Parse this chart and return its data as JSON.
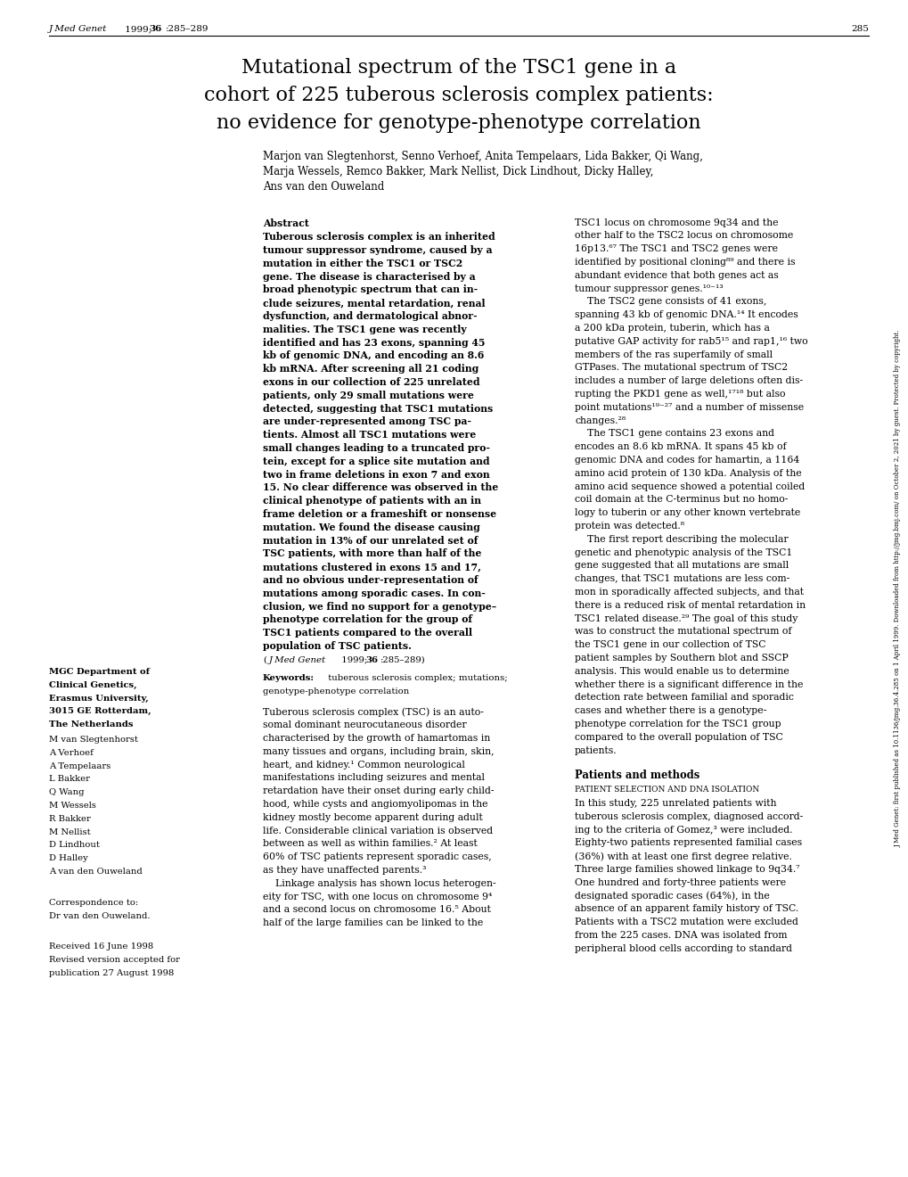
{
  "background_color": "#ffffff",
  "page_width": 10.2,
  "page_height": 13.2,
  "header_journal_italic": "J Med Genet",
  "header_rest": " 1999;",
  "header_bold": "36",
  "header_colon": ":285–289",
  "header_page_num": "285",
  "title_line1": "Mutational spectrum of the TSC1 gene in a",
  "title_line2": "cohort of 225 tuberous sclerosis complex patients:",
  "title_line3": "no evidence for genotype-phenotype correlation",
  "authors_line1": "Marjon van Slegtenhorst, Senno Verhoef, Anita Tempelaars, Lida Bakker, Qi Wang,",
  "authors_line2": "Marja Wessels, Remco Bakker, Mark Nellist, Dick Lindhout, Dicky Halley,",
  "authors_line3": "Ans van den Ouweland",
  "abstract_label": "Abstract",
  "abstract_lines": [
    "Tuberous sclerosis complex is an inherited",
    "tumour suppressor syndrome, caused by a",
    "mutation in either the TSC1 or TSC2",
    "gene. The disease is characterised by a",
    "broad phenotypic spectrum that can in-",
    "clude seizures, mental retardation, renal",
    "dysfunction, and dermatological abnor-",
    "malities. The TSC1 gene was recently",
    "identified and has 23 exons, spanning 45",
    "kb of genomic DNA, and encoding an 8.6",
    "kb mRNA. After screening all 21 coding",
    "exons in our collection of 225 unrelated",
    "patients, only 29 small mutations were",
    "detected, suggesting that TSC1 mutations",
    "are under-represented among TSC pa-",
    "tients. Almost all TSC1 mutations were",
    "small changes leading to a truncated pro-",
    "tein, except for a splice site mutation and",
    "two in frame deletions in exon 7 and exon",
    "15. No clear difference was observed in the",
    "clinical phenotype of patients with an in",
    "frame deletion or a frameshift or nonsense",
    "mutation. We found the disease causing",
    "mutation in 13% of our unrelated set of",
    "TSC patients, with more than half of the",
    "mutations clustered in exons 15 and 17,",
    "and no obvious under-representation of",
    "mutations among sporadic cases. In con-",
    "clusion, we find no support for a genotype–",
    "phenotype correlation for the group of",
    "TSC1 patients compared to the overall",
    "population of TSC patients."
  ],
  "abstract_citation": "(J Med Genet 1999;36:285–289)",
  "keywords_line1": "Keywords:  tuberous sclerosis complex; mutations;",
  "keywords_line2": "genotype-phenotype correlation",
  "col1_intro_lines": [
    "Tuberous sclerosis complex (TSC) is an auto-",
    "somal dominant neurocutaneous disorder",
    "characterised by the growth of hamartomas in",
    "many tissues and organs, including brain, skin,",
    "heart, and kidney.¹ Common neurological",
    "manifestations including seizures and mental",
    "retardation have their onset during early child-",
    "hood, while cysts and angiomyolipomas in the",
    "kidney mostly become apparent during adult",
    "life. Considerable clinical variation is observed",
    "between as well as within families.² At least",
    "60% of TSC patients represent sporadic cases,",
    "as they have unaffected parents.³",
    "    Linkage analysis has shown locus heterogen-",
    "eity for TSC, with one locus on chromosome 9⁴",
    "and a second locus on chromosome 16.⁵ About",
    "half of the large families can be linked to the"
  ],
  "col2_intro_lines": [
    "TSC1 locus on chromosome 9q34 and the",
    "other half to the TSC2 locus on chromosome",
    "16p13.⁶⁷ The TSC1 and TSC2 genes were",
    "identified by positional cloning⁸⁹ and there is",
    "abundant evidence that both genes act as",
    "tumour suppressor genes.¹⁰⁻¹³",
    "    The TSC2 gene consists of 41 exons,",
    "spanning 43 kb of genomic DNA.¹⁴ It encodes",
    "a 200 kDa protein, tuberin, which has a",
    "putative GAP activity for rab5¹⁵ and rap1,¹⁶ two",
    "members of the ras superfamily of small",
    "GTPases. The mutational spectrum of TSC2",
    "includes a number of large deletions often dis-",
    "rupting the PKD1 gene as well,¹⁷¹⁸ but also",
    "point mutations¹⁹⁻²⁷ and a number of missense",
    "changes.²⁸",
    "    The TSC1 gene contains 23 exons and",
    "encodes an 8.6 kb mRNA. It spans 45 kb of",
    "genomic DNA and codes for hamartin, a 1164",
    "amino acid protein of 130 kDa. Analysis of the",
    "amino acid sequence showed a potential coiled",
    "coil domain at the C-terminus but no homo-",
    "logy to tuberin or any other known vertebrate",
    "protein was detected.⁸",
    "    The first report describing the molecular",
    "genetic and phenotypic analysis of the TSC1",
    "gene suggested that all mutations are small",
    "changes, that TSC1 mutations are less com-",
    "mon in sporadically affected subjects, and that",
    "there is a reduced risk of mental retardation in",
    "TSC1 related disease.²⁹ The goal of this study",
    "was to construct the mutational spectrum of",
    "the TSC1 gene in our collection of TSC",
    "patient samples by Southern blot and SSCP",
    "analysis. This would enable us to determine",
    "whether there is a significant difference in the",
    "detection rate between familial and sporadic",
    "cases and whether there is a genotype-",
    "phenotype correlation for the TSC1 group",
    "compared to the overall population of TSC",
    "patients."
  ],
  "patients_methods_header": "Patients and methods",
  "patient_selection_sub": "PATIENT SELECTION AND DNA ISOLATION",
  "patient_selection_lines": [
    "In this study, 225 unrelated patients with",
    "tuberous sclerosis complex, diagnosed accord-",
    "ing to the criteria of Gomez,³ were included.",
    "Eighty-two patients represented familial cases",
    "(36%) with at least one first degree relative.",
    "Three large families showed linkage to 9q34.⁷",
    "One hundred and forty-three patients were",
    "designated sporadic cases (64%), in the",
    "absence of an apparent family history of TSC.",
    "Patients with a TSC2 mutation were excluded",
    "from the 225 cases. DNA was isolated from",
    "peripheral blood cells according to standard"
  ],
  "affil_lines": [
    "MGC Department of",
    "Clinical Genetics,",
    "Erasmus University,",
    "3015 GE Rotterdam,",
    "The Netherlands"
  ],
  "affil_names": [
    "M van Slegtenhorst",
    "A Verhoef",
    "A Tempelaars",
    "L Bakker",
    "Q Wang",
    "M Wessels",
    "R Bakker",
    "M Nellist",
    "D Lindhout",
    "D Halley",
    "A van den Ouweland"
  ],
  "correspondence_lines": [
    "Correspondence to:",
    "Dr van den Ouweland."
  ],
  "received_lines": [
    "Received 16 June 1998",
    "Revised version accepted for",
    "publication 27 August 1998"
  ],
  "right_margin_text": "J Med Genet: first published as 10.1136/jmg.36.4.285 on 1 April 1999. Downloaded from http://jmg.bmj.com/ on October 2, 2021 by guest. Protected by copyright."
}
